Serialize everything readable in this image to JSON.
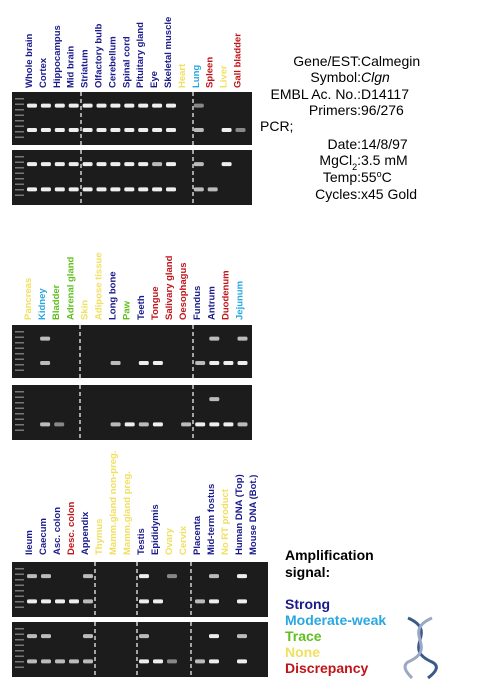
{
  "panels": [
    {
      "lanes": [
        {
          "label": "Whole brain",
          "color": "#1a1a8c"
        },
        {
          "label": "Cortex",
          "color": "#1a1a8c"
        },
        {
          "label": "Hippocampus",
          "color": "#1a1a8c"
        },
        {
          "label": "Mid brain",
          "color": "#1a1a8c"
        },
        {
          "label": "Striatum",
          "color": "#1a1a8c"
        },
        {
          "label": "Olfactory bulb",
          "color": "#1a1a8c"
        },
        {
          "label": "Cerebellum",
          "color": "#1a1a8c"
        },
        {
          "label": "Spinal cord",
          "color": "#1a1a8c"
        },
        {
          "label": "Pituitary gland",
          "color": "#1a1a8c"
        },
        {
          "label": "Eye",
          "color": "#1a1a8c"
        },
        {
          "label": "Skeletal muscle",
          "color": "#1a1a8c"
        },
        {
          "label": "Heart",
          "color": "#f0e060"
        },
        {
          "label": "Lung",
          "color": "#2aa7e0"
        },
        {
          "label": "Spleen",
          "color": "#c0141a"
        },
        {
          "label": "Liver",
          "color": "#f0e060"
        },
        {
          "label": "Gall bladder",
          "color": "#c0141a"
        }
      ]
    },
    {
      "lanes": [
        {
          "label": "Pancreas",
          "color": "#f0e060"
        },
        {
          "label": "Kidney",
          "color": "#2aa7e0"
        },
        {
          "label": "Bladder",
          "color": "#5fbf1f"
        },
        {
          "label": "Adrenal gland",
          "color": "#5fbf1f"
        },
        {
          "label": "Skin",
          "color": "#f0e060"
        },
        {
          "label": "Adipose tissue",
          "color": "#f0e060"
        },
        {
          "label": "Long bone",
          "color": "#1a1a8c"
        },
        {
          "label": "Paw",
          "color": "#5fbf1f"
        },
        {
          "label": "Teeth",
          "color": "#1a1a8c"
        },
        {
          "label": "Tongue",
          "color": "#c0141a"
        },
        {
          "label": "Salivary gland",
          "color": "#c0141a"
        },
        {
          "label": "Oesophagus",
          "color": "#c0141a"
        },
        {
          "label": "Fundus",
          "color": "#1a1a8c"
        },
        {
          "label": "Antrum",
          "color": "#1a1a8c"
        },
        {
          "label": "Duodenum",
          "color": "#c0141a"
        },
        {
          "label": "Jejunum",
          "color": "#2aa7e0"
        }
      ]
    },
    {
      "lanes": [
        {
          "label": "Ileum",
          "color": "#1a1a8c"
        },
        {
          "label": "Caecum",
          "color": "#1a1a8c"
        },
        {
          "label": "Asc. colon",
          "color": "#1a1a8c"
        },
        {
          "label": "Desc. colon",
          "color": "#c0141a"
        },
        {
          "label": "Appendix",
          "color": "#1a1a8c"
        },
        {
          "label": "Thymus",
          "color": "#f0e060"
        },
        {
          "label": "Mamm.gland non-preg.",
          "color": "#f0e060"
        },
        {
          "label": "Mamm.gland preg.",
          "color": "#f0e060"
        },
        {
          "label": "Testis",
          "color": "#1a1a8c"
        },
        {
          "label": "Epididymis",
          "color": "#1a1a8c"
        },
        {
          "label": "Ovary",
          "color": "#f0e060"
        },
        {
          "label": "Cervix",
          "color": "#f0e060"
        },
        {
          "label": "Placenta",
          "color": "#1a1a8c"
        },
        {
          "label": "Mid-term fostus",
          "color": "#1a1a8c"
        },
        {
          "label": "No RT product",
          "color": "#f0e060"
        },
        {
          "label": "Human DNA (Top)",
          "color": "#1a1a8c"
        },
        {
          "label": "Mouse DNA (Bot.)",
          "color": "#1a1a8c"
        }
      ]
    }
  ],
  "info": [
    {
      "label": [
        "Gene/EST:"
      ],
      "value": [
        "Calmegin"
      ]
    },
    {
      "label": [
        "Symbol:"
      ],
      "value": [
        {
          "text": "Clgn",
          "italic": true
        }
      ]
    },
    {
      "label": [
        "EMBL Ac. No.:"
      ],
      "value": [
        "D14117"
      ]
    },
    {
      "label": [
        "Primers:"
      ],
      "value": [
        "96/276"
      ]
    },
    {
      "label": [
        "PCR;"
      ],
      "value": []
    },
    {
      "label": [
        "Date:"
      ],
      "value": [
        "14/8/97"
      ]
    },
    {
      "label": [
        "MgCl",
        {
          "text": "2",
          "sub": true
        },
        ":"
      ],
      "value": [
        "3.5 mM"
      ]
    },
    {
      "label": [
        "Temp:"
      ],
      "value": [
        "55",
        {
          "text": "o",
          "sup": true
        },
        "C"
      ]
    },
    {
      "label": [
        "Cycles:"
      ],
      "value": [
        "x45 Gold"
      ]
    }
  ],
  "legend": {
    "title": [
      "Amplification",
      "signal:"
    ],
    "items": [
      {
        "label": "Strong",
        "color": "#1a1a8c"
      },
      {
        "label": "Moderate-weak",
        "color": "#2aa7e0"
      },
      {
        "label": "Trace",
        "color": "#5fbf1f"
      },
      {
        "label": "None",
        "color": "#f0e060"
      },
      {
        "label": "Discrepancy",
        "color": "#c0141a"
      }
    ]
  }
}
